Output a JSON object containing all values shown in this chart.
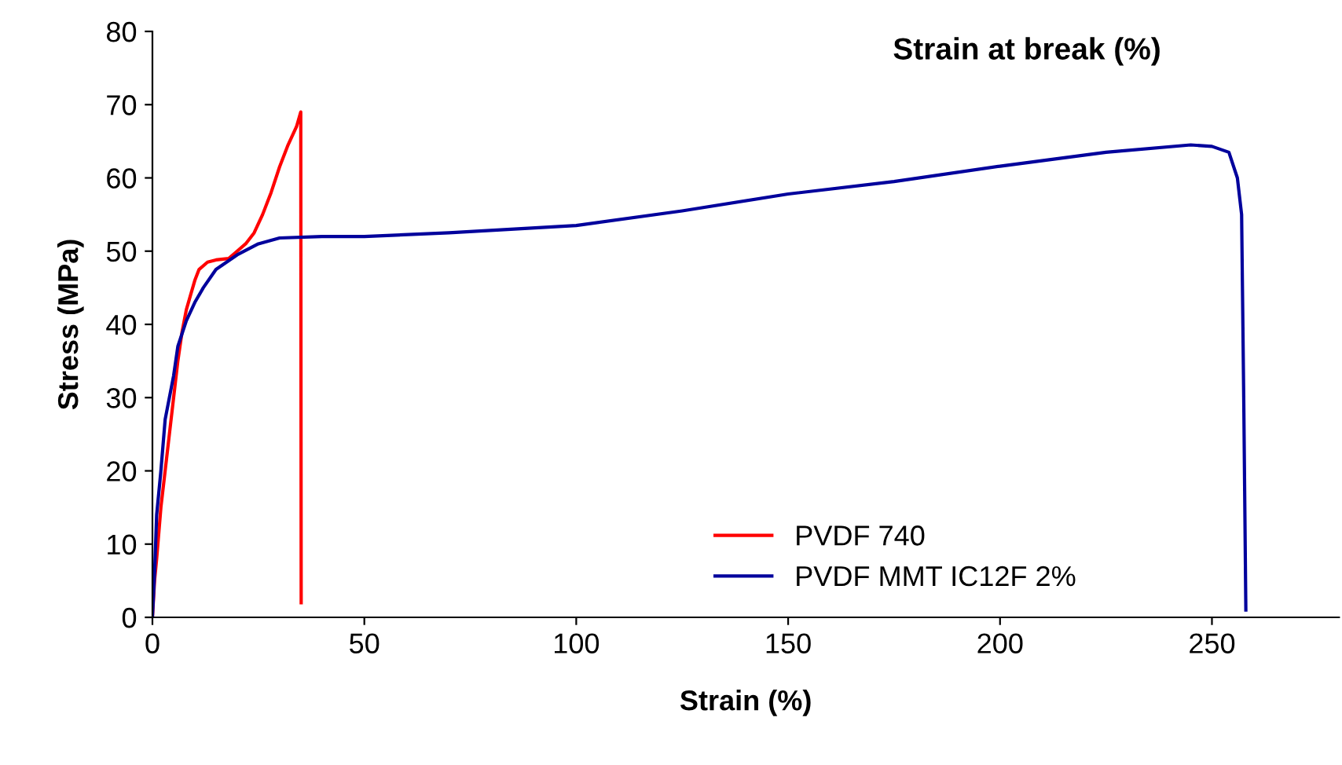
{
  "chart_data": {
    "type": "line",
    "title": "Strain at break (%)",
    "xlabel": "Strain (%)",
    "ylabel": "Stress (MPa)",
    "xlim": [
      0,
      280
    ],
    "xticks": [
      0,
      50,
      100,
      150,
      200,
      250
    ],
    "ylim": [
      0,
      80
    ],
    "yticks": [
      0,
      10,
      20,
      30,
      40,
      50,
      60,
      70,
      80
    ],
    "grid": false,
    "legend": "bottom right",
    "marker": "none",
    "line_style": "solid",
    "series": [
      {
        "name": "PVDF 740",
        "color": "#ff0000",
        "x": [
          0,
          0.5,
          1,
          2,
          3,
          4,
          5,
          6,
          7,
          8,
          9,
          10,
          11,
          13,
          15,
          18,
          20,
          22,
          24,
          26,
          28,
          30,
          32,
          34,
          35,
          35.1
        ],
        "values": [
          0,
          5,
          8,
          15,
          20,
          25,
          30,
          35,
          39,
          42,
          44,
          46,
          47.5,
          48.5,
          48.8,
          49,
          50,
          51,
          52.5,
          55,
          58,
          61.5,
          64.5,
          67,
          69,
          2
        ]
      },
      {
        "name": "PVDF MMT IC12F 2%",
        "color": "#00009c",
        "x": [
          0,
          0.5,
          1,
          2,
          3,
          5,
          6,
          8,
          10,
          12,
          15,
          20,
          25,
          30,
          40,
          50,
          70,
          100,
          125,
          150,
          175,
          200,
          225,
          245,
          250,
          254,
          256,
          257,
          257.5,
          258
        ],
        "values": [
          0,
          6,
          14,
          20,
          27,
          33,
          37,
          40.5,
          43,
          45,
          47.5,
          49.5,
          51,
          51.8,
          52,
          52,
          52.5,
          53.5,
          55.5,
          57.8,
          59.5,
          61.6,
          63.5,
          64.5,
          64.3,
          63.5,
          60,
          55,
          30,
          1
        ]
      }
    ]
  }
}
